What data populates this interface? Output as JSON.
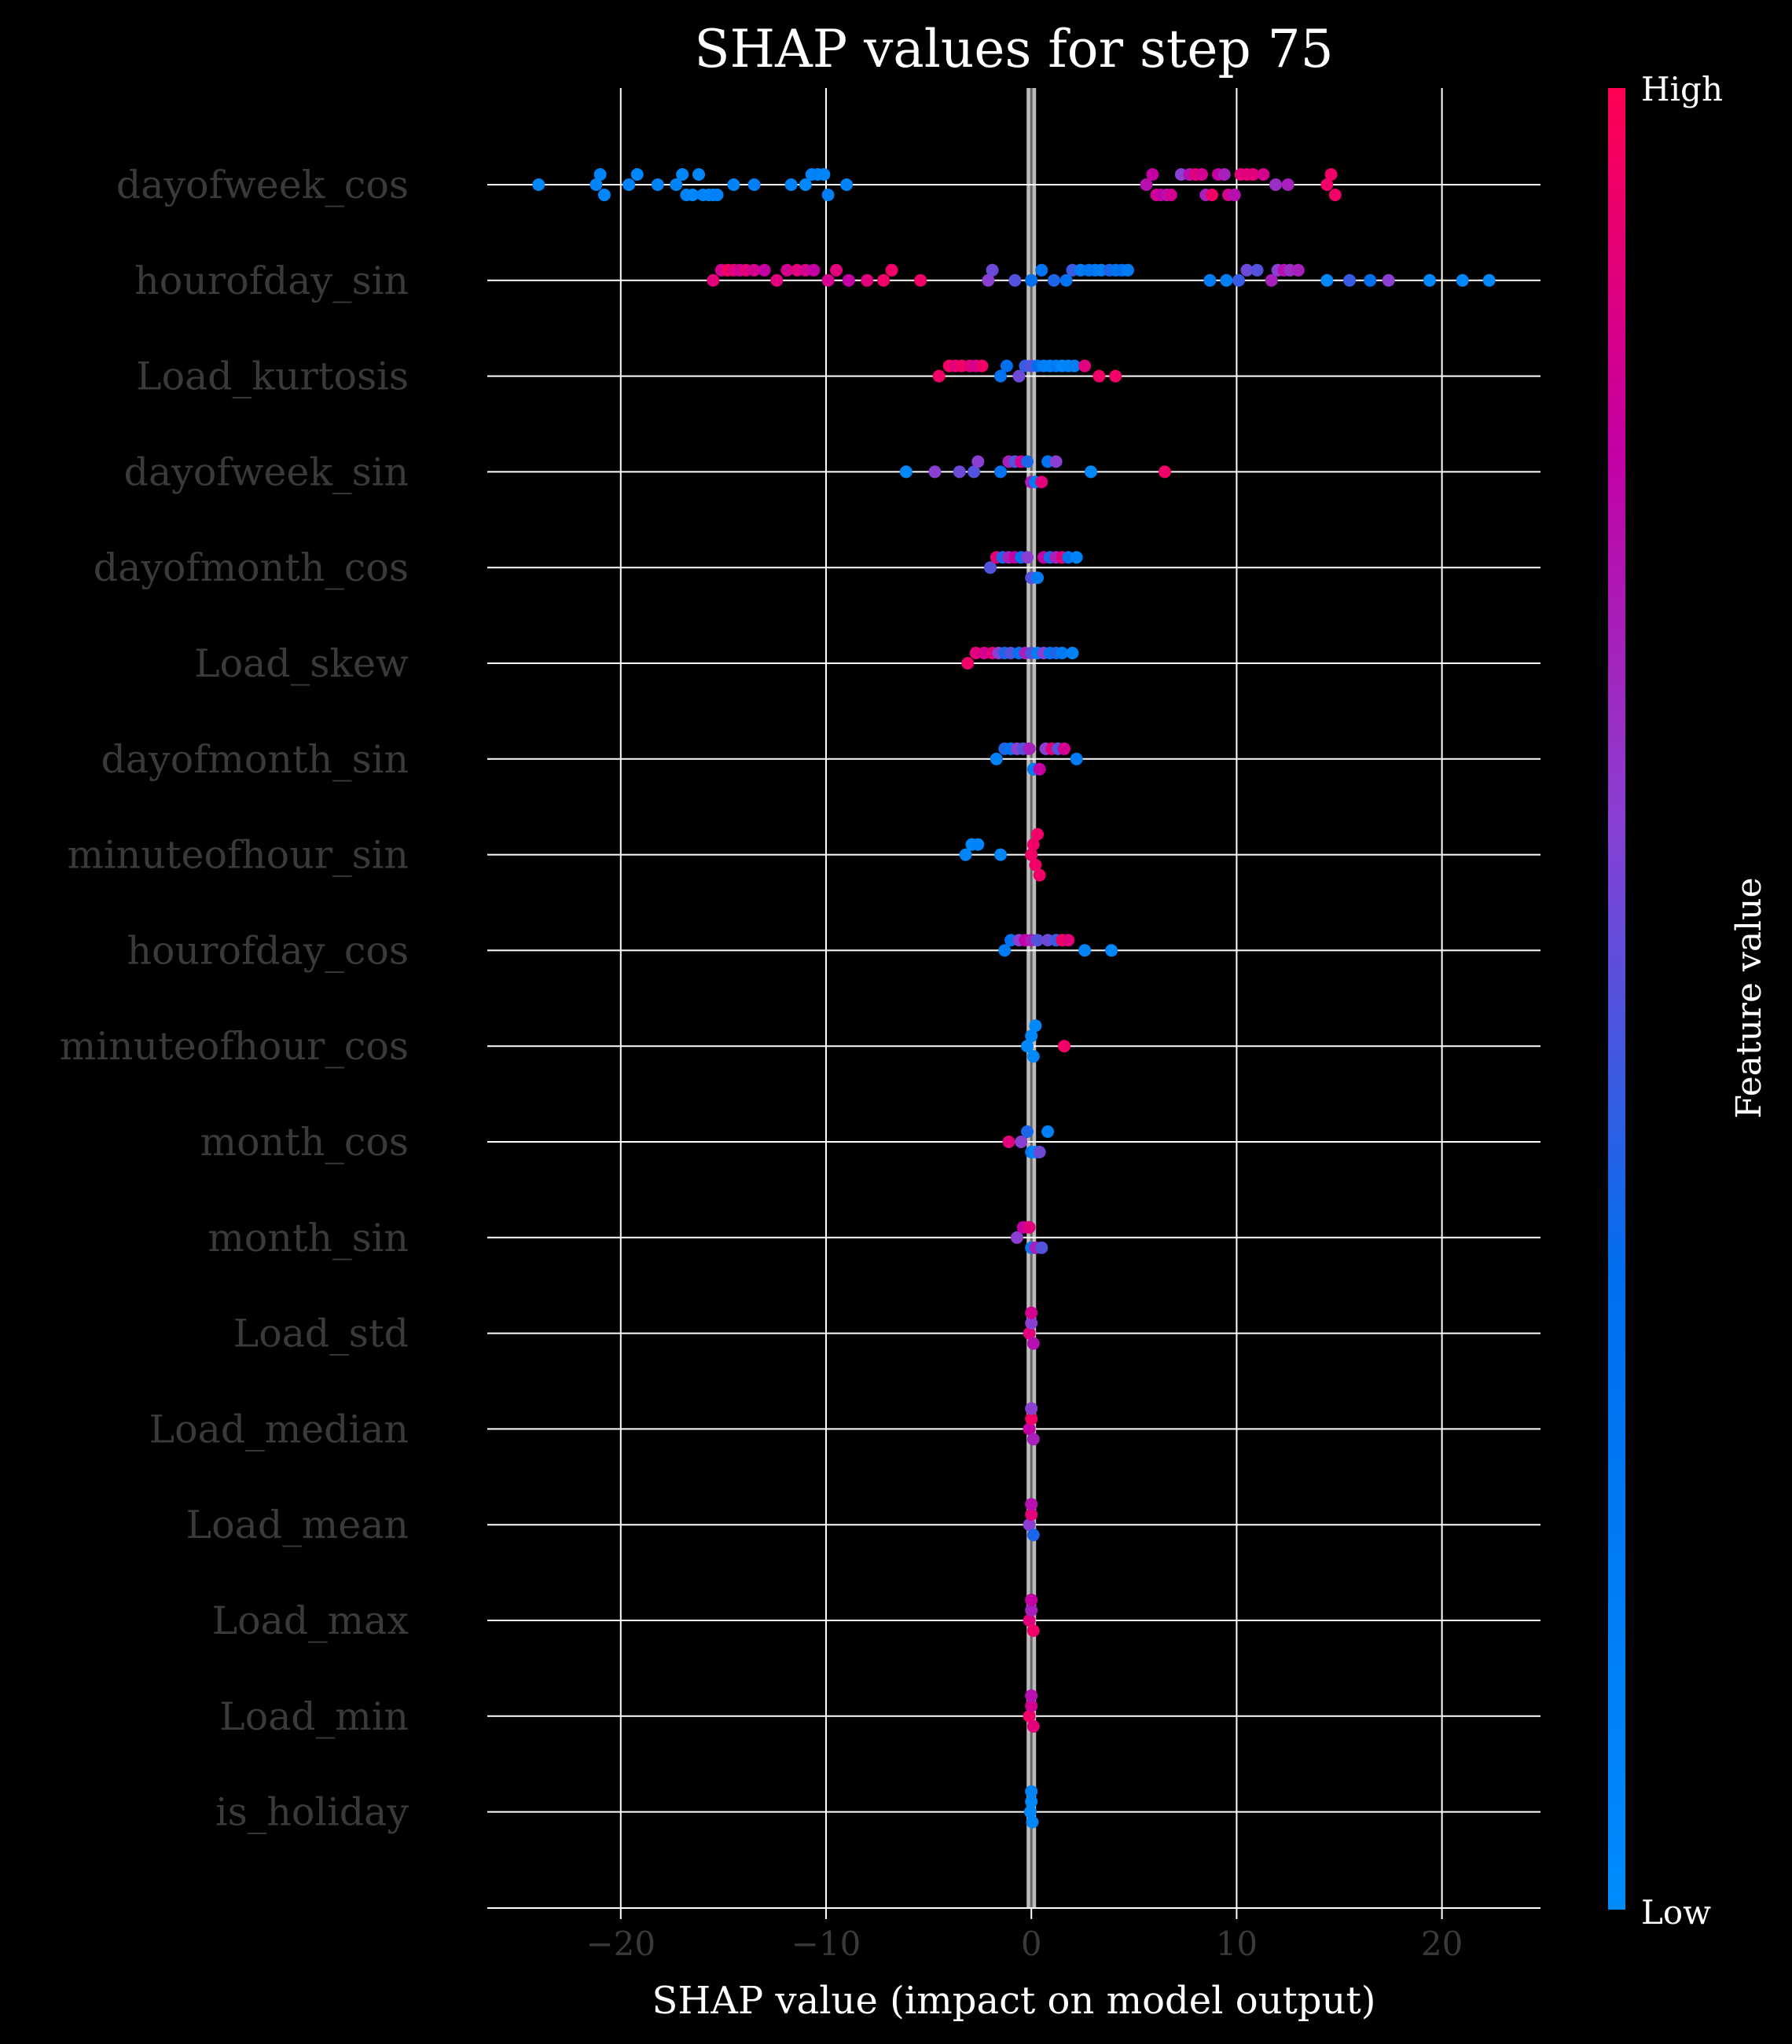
{
  "chart_data": {
    "type": "scatter",
    "subtype": "shap-beeswarm",
    "title": "SHAP values for step 75",
    "xlabel": "SHAP value (impact on model output)",
    "xlim": [
      -26.5,
      24.8
    ],
    "xticks": [
      -20,
      -10,
      0,
      10,
      20
    ],
    "x_tick_labels": [
      "−20",
      "−10",
      "0",
      "10",
      "20"
    ],
    "grid": true,
    "colorbar": {
      "title": "Feature value",
      "high_label": "High",
      "low_label": "Low",
      "low_color": "#008bfb",
      "high_color": "#ff0052"
    },
    "colors": {
      "background": "#000000",
      "grid": "#ffffff",
      "zero_line": "#bbbbbb"
    },
    "features": [
      {
        "name": "dayofweek_cos",
        "points": [
          [
            -24.0,
            0.05
          ],
          [
            -21.2,
            0.1
          ],
          [
            -21.0,
            0.08
          ],
          [
            -20.8,
            0.05
          ],
          [
            -19.6,
            0.1
          ],
          [
            -19.2,
            0.05
          ],
          [
            -18.2,
            0.1
          ],
          [
            -17.3,
            0.1
          ],
          [
            -17.0,
            0.05
          ],
          [
            -16.8,
            0.1
          ],
          [
            -16.5,
            0.05
          ],
          [
            -16.2,
            0.08
          ],
          [
            -16.0,
            0.12
          ],
          [
            -15.7,
            0.05
          ],
          [
            -15.5,
            0.1
          ],
          [
            -15.3,
            0.12
          ],
          [
            -14.5,
            0.1
          ],
          [
            -13.5,
            0.15
          ],
          [
            -11.7,
            0.1
          ],
          [
            -11.0,
            0.05
          ],
          [
            -10.7,
            0.12
          ],
          [
            -10.4,
            0.1
          ],
          [
            -10.1,
            0.08
          ],
          [
            -9.9,
            0.15
          ],
          [
            -9.0,
            0.1
          ],
          [
            5.6,
            0.75
          ],
          [
            5.9,
            0.8
          ],
          [
            6.1,
            0.85
          ],
          [
            6.3,
            0.8
          ],
          [
            6.6,
            0.75
          ],
          [
            6.8,
            0.85
          ],
          [
            7.3,
            0.6
          ],
          [
            7.7,
            0.75
          ],
          [
            8.0,
            0.9
          ],
          [
            8.3,
            0.85
          ],
          [
            8.5,
            0.7
          ],
          [
            8.8,
            0.95
          ],
          [
            9.1,
            0.8
          ],
          [
            9.4,
            0.7
          ],
          [
            9.6,
            0.85
          ],
          [
            9.9,
            0.75
          ],
          [
            10.2,
            0.9
          ],
          [
            10.5,
            0.9
          ],
          [
            10.8,
            0.9
          ],
          [
            11.3,
            0.85
          ],
          [
            11.9,
            0.65
          ],
          [
            12.5,
            0.7
          ],
          [
            14.4,
            0.95
          ],
          [
            14.6,
            0.95
          ],
          [
            14.8,
            0.95
          ]
        ]
      },
      {
        "name": "hourofday_sin",
        "points": [
          [
            -15.5,
            0.9
          ],
          [
            -15.1,
            0.85
          ],
          [
            -14.8,
            0.95
          ],
          [
            -14.5,
            0.9
          ],
          [
            -14.2,
            0.85
          ],
          [
            -13.9,
            0.9
          ],
          [
            -13.5,
            0.85
          ],
          [
            -13.0,
            0.8
          ],
          [
            -12.4,
            0.9
          ],
          [
            -11.9,
            0.85
          ],
          [
            -11.4,
            0.9
          ],
          [
            -11.0,
            0.85
          ],
          [
            -10.6,
            0.8
          ],
          [
            -9.9,
            0.85
          ],
          [
            -9.5,
            0.9
          ],
          [
            -8.9,
            0.8
          ],
          [
            -8.0,
            0.9
          ],
          [
            -7.2,
            0.95
          ],
          [
            -6.8,
            0.95
          ],
          [
            -5.4,
            0.95
          ],
          [
            -2.1,
            0.6
          ],
          [
            -1.9,
            0.55
          ],
          [
            -0.8,
            0.5
          ],
          [
            0.0,
            0.35
          ],
          [
            0.5,
            0.3
          ],
          [
            1.1,
            0.4
          ],
          [
            1.7,
            0.3
          ],
          [
            2.0,
            0.45
          ],
          [
            2.4,
            0.2
          ],
          [
            2.8,
            0.3
          ],
          [
            3.1,
            0.25
          ],
          [
            3.4,
            0.15
          ],
          [
            3.8,
            0.4
          ],
          [
            4.1,
            0.3
          ],
          [
            4.4,
            0.35
          ],
          [
            4.7,
            0.2
          ],
          [
            8.7,
            0.2
          ],
          [
            9.5,
            0.15
          ],
          [
            10.1,
            0.45
          ],
          [
            10.5,
            0.55
          ],
          [
            11.0,
            0.5
          ],
          [
            11.7,
            0.7
          ],
          [
            12.0,
            0.6
          ],
          [
            12.3,
            0.75
          ],
          [
            12.6,
            0.65
          ],
          [
            13.0,
            0.7
          ],
          [
            14.4,
            0.05
          ],
          [
            15.5,
            0.45
          ],
          [
            16.5,
            0.35
          ],
          [
            17.4,
            0.6
          ],
          [
            19.4,
            0.05
          ],
          [
            21.0,
            0.05
          ],
          [
            22.3,
            0.05
          ]
        ]
      },
      {
        "name": "Load_kurtosis",
        "points": [
          [
            -4.5,
            0.95
          ],
          [
            -4.0,
            0.95
          ],
          [
            -3.7,
            0.9
          ],
          [
            -3.4,
            0.95
          ],
          [
            -3.0,
            0.9
          ],
          [
            -2.7,
            0.85
          ],
          [
            -2.4,
            0.95
          ],
          [
            -1.5,
            0.3
          ],
          [
            -1.2,
            0.35
          ],
          [
            -0.6,
            0.55
          ],
          [
            -0.3,
            0.45
          ],
          [
            0.0,
            0.5
          ],
          [
            0.3,
            0.35
          ],
          [
            0.6,
            0.15
          ],
          [
            0.9,
            0.1
          ],
          [
            1.2,
            0.2
          ],
          [
            1.5,
            0.05
          ],
          [
            1.8,
            0.1
          ],
          [
            2.1,
            0.15
          ],
          [
            2.6,
            0.9
          ],
          [
            3.3,
            0.95
          ],
          [
            4.1,
            0.95
          ]
        ]
      },
      {
        "name": "dayofweek_sin",
        "points": [
          [
            -6.1,
            0.05
          ],
          [
            -4.7,
            0.6
          ],
          [
            -3.5,
            0.55
          ],
          [
            -2.8,
            0.5
          ],
          [
            -2.6,
            0.6
          ],
          [
            -1.5,
            0.3
          ],
          [
            -1.1,
            0.7
          ],
          [
            -0.8,
            0.5
          ],
          [
            -0.5,
            0.85
          ],
          [
            -0.2,
            0.4
          ],
          [
            0.0,
            0.7
          ],
          [
            0.2,
            0.2
          ],
          [
            0.5,
            0.9
          ],
          [
            0.8,
            0.3
          ],
          [
            1.2,
            0.6
          ],
          [
            2.9,
            0.05
          ],
          [
            6.5,
            0.95
          ]
        ]
      },
      {
        "name": "dayofmonth_cos",
        "points": [
          [
            -2.0,
            0.5
          ],
          [
            -1.7,
            0.9
          ],
          [
            -1.4,
            0.4
          ],
          [
            -1.1,
            0.7
          ],
          [
            -0.8,
            0.8
          ],
          [
            -0.5,
            0.3
          ],
          [
            -0.2,
            0.6
          ],
          [
            0.0,
            0.5
          ],
          [
            0.3,
            0.2
          ],
          [
            0.6,
            0.8
          ],
          [
            0.9,
            0.4
          ],
          [
            1.2,
            0.7
          ],
          [
            1.5,
            0.9
          ],
          [
            1.8,
            0.3
          ],
          [
            2.2,
            0.1
          ]
        ]
      },
      {
        "name": "Load_skew",
        "points": [
          [
            -3.1,
            0.95
          ],
          [
            -2.7,
            0.9
          ],
          [
            -2.3,
            0.85
          ],
          [
            -1.9,
            0.9
          ],
          [
            -1.6,
            0.6
          ],
          [
            -1.3,
            0.4
          ],
          [
            -1.0,
            0.5
          ],
          [
            -0.6,
            0.3
          ],
          [
            -0.3,
            0.7
          ],
          [
            0.0,
            0.5
          ],
          [
            0.3,
            0.2
          ],
          [
            0.6,
            0.6
          ],
          [
            0.9,
            0.3
          ],
          [
            1.2,
            0.4
          ],
          [
            1.5,
            0.2
          ],
          [
            2.0,
            0.1
          ]
        ]
      },
      {
        "name": "dayofmonth_sin",
        "points": [
          [
            -1.7,
            0.1
          ],
          [
            -1.3,
            0.4
          ],
          [
            -1.0,
            0.3
          ],
          [
            -0.7,
            0.6
          ],
          [
            -0.4,
            0.5
          ],
          [
            -0.1,
            0.7
          ],
          [
            0.1,
            0.2
          ],
          [
            0.4,
            0.8
          ],
          [
            0.7,
            0.6
          ],
          [
            1.0,
            0.9
          ],
          [
            1.3,
            0.5
          ],
          [
            1.6,
            0.85
          ],
          [
            2.2,
            0.2
          ]
        ]
      },
      {
        "name": "minuteofhour_sin",
        "points": [
          [
            -3.2,
            0.1
          ],
          [
            -2.9,
            0.05
          ],
          [
            -2.6,
            0.1
          ],
          [
            -1.5,
            0.05
          ],
          [
            0.0,
            0.95
          ],
          [
            0.1,
            0.95
          ],
          [
            0.2,
            0.95
          ],
          [
            0.3,
            0.95
          ],
          [
            0.4,
            0.95
          ]
        ]
      },
      {
        "name": "hourofday_cos",
        "points": [
          [
            -1.3,
            0.2
          ],
          [
            -1.0,
            0.3
          ],
          [
            -0.6,
            0.6
          ],
          [
            -0.3,
            0.8
          ],
          [
            0.0,
            0.7
          ],
          [
            0.3,
            0.5
          ],
          [
            0.8,
            0.55
          ],
          [
            1.2,
            0.45
          ],
          [
            1.5,
            0.95
          ],
          [
            1.8,
            0.9
          ],
          [
            2.6,
            0.1
          ],
          [
            3.9,
            0.05
          ]
        ]
      },
      {
        "name": "minuteofhour_cos",
        "points": [
          [
            -0.2,
            0.05
          ],
          [
            0.0,
            0.05
          ],
          [
            0.1,
            0.05
          ],
          [
            0.2,
            0.05
          ],
          [
            1.6,
            0.95
          ]
        ]
      },
      {
        "name": "month_cos",
        "points": [
          [
            -1.1,
            0.9
          ],
          [
            -0.5,
            0.6
          ],
          [
            -0.2,
            0.4
          ],
          [
            0.0,
            0.2
          ],
          [
            0.2,
            0.1
          ],
          [
            0.4,
            0.55
          ],
          [
            0.8,
            0.15
          ]
        ]
      },
      {
        "name": "month_sin",
        "points": [
          [
            -0.7,
            0.6
          ],
          [
            -0.4,
            0.8
          ],
          [
            -0.1,
            0.9
          ],
          [
            0.0,
            0.2
          ],
          [
            0.2,
            0.7
          ],
          [
            0.5,
            0.5
          ]
        ]
      },
      {
        "name": "Load_std",
        "points": [
          [
            -0.1,
            0.9
          ],
          [
            0.0,
            0.6
          ],
          [
            0.1,
            0.75
          ],
          [
            0.0,
            0.85
          ]
        ]
      },
      {
        "name": "Load_median",
        "points": [
          [
            -0.1,
            0.8
          ],
          [
            0.0,
            0.95
          ],
          [
            0.1,
            0.7
          ],
          [
            0.0,
            0.6
          ]
        ]
      },
      {
        "name": "Load_mean",
        "points": [
          [
            -0.1,
            0.6
          ],
          [
            0.0,
            0.9
          ],
          [
            0.1,
            0.4
          ],
          [
            0.0,
            0.75
          ]
        ]
      },
      {
        "name": "Load_max",
        "points": [
          [
            -0.1,
            0.9
          ],
          [
            0.0,
            0.7
          ],
          [
            0.1,
            0.95
          ],
          [
            0.0,
            0.8
          ]
        ]
      },
      {
        "name": "Load_min",
        "points": [
          [
            -0.1,
            0.95
          ],
          [
            0.0,
            0.85
          ],
          [
            0.1,
            0.9
          ],
          [
            0.0,
            0.75
          ]
        ]
      },
      {
        "name": "is_holiday",
        "points": [
          [
            -0.05,
            0.05
          ],
          [
            0.0,
            0.05
          ],
          [
            0.05,
            0.05
          ],
          [
            0.0,
            0.1
          ]
        ]
      }
    ]
  }
}
